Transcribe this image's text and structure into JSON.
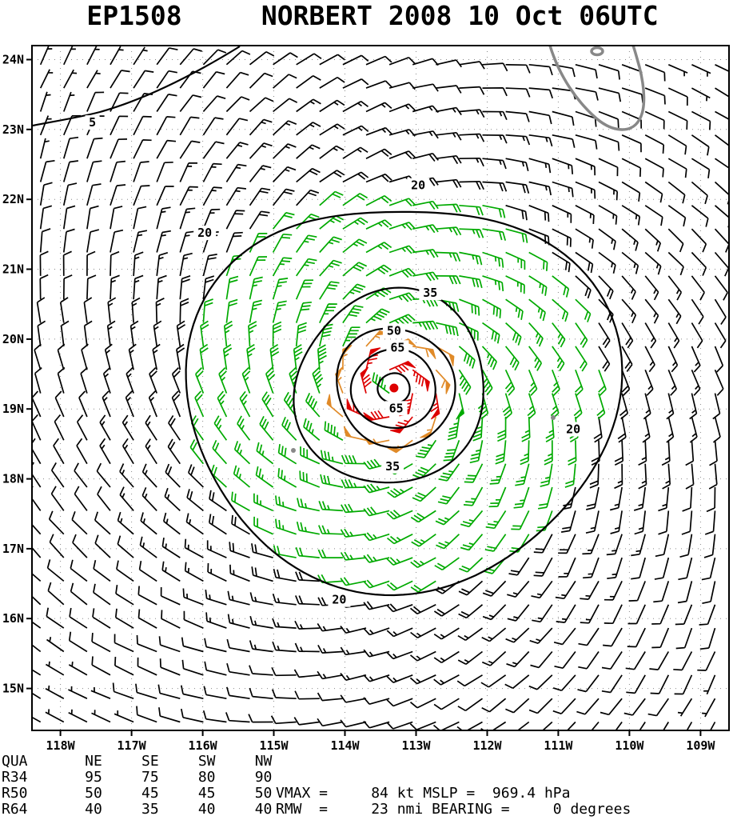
{
  "title": "EP1508     NORBERT 2008 10 Oct 06UTC",
  "chart_data": {
    "type": "wind-barb-analysis-map",
    "storm_id": "EP1508",
    "storm_name": "NORBERT",
    "valid_time": "2008 10 Oct 06UTC",
    "center": {
      "lon_w": 113.31,
      "lat_n": 19.3
    },
    "vmax_kt": 84,
    "mslp_hpa": 969.4,
    "rmw_nmi": 23,
    "bearing_deg": 0,
    "axes": {
      "lon_w_ticks": [
        118,
        117,
        116,
        115,
        114,
        113,
        112,
        111,
        110,
        109
      ],
      "lon_tick_labels": [
        "118W",
        "117W",
        "116W",
        "115W",
        "114W",
        "113W",
        "112W",
        "111W",
        "110W",
        "109W"
      ],
      "lat_n_ticks": [
        15,
        16,
        17,
        18,
        19,
        20,
        21,
        22,
        23,
        24
      ],
      "lat_tick_labels": [
        "15N",
        "16N",
        "17N",
        "18N",
        "19N",
        "20N",
        "21N",
        "22N",
        "23N",
        "24N"
      ],
      "lon_w_range": [
        118.4,
        108.6
      ],
      "lat_n_range": [
        14.4,
        24.2
      ],
      "grid": "dotted"
    },
    "wind_profile_r_deg_to_kt": [
      [
        0,
        8
      ],
      [
        0.15,
        62
      ],
      [
        0.25,
        80
      ],
      [
        0.38,
        84
      ],
      [
        0.58,
        65
      ],
      [
        0.84,
        50
      ],
      [
        1.36,
        34
      ],
      [
        2.0,
        26
      ],
      [
        2.9,
        20
      ],
      [
        4.5,
        11
      ],
      [
        6.5,
        6
      ],
      [
        12,
        4
      ]
    ],
    "inflow_angle_rad": 0.3,
    "barb_spacing_deg": {
      "lon": 0.327,
      "lat": 0.336
    },
    "barb_colors": {
      "black_lt20": "#000000",
      "green_20_47": "#00aa00",
      "orange_48_63": "#e08a28",
      "red_ge64": "#dd0000"
    },
    "isotachs": [
      {
        "value": 5,
        "rings_deg": [],
        "wiggle": 0.0,
        "labels": [
          {
            "lon_w": 117.55,
            "lat_n": 23.1
          }
        ]
      },
      {
        "value": 20,
        "rings_deg": [
          2.9
        ],
        "wiggle": 0.055,
        "labels": [
          {
            "lon_w": 115.97,
            "lat_n": 21.52
          },
          {
            "lon_w": 112.97,
            "lat_n": 22.2
          },
          {
            "lon_w": 110.79,
            "lat_n": 18.71
          },
          {
            "lon_w": 114.08,
            "lat_n": 16.27
          }
        ]
      },
      {
        "value": 35,
        "rings_deg": [
          1.36
        ],
        "wiggle": 0.04,
        "labels": [
          {
            "lon_w": 112.8,
            "lat_n": 20.66
          },
          {
            "lon_w": 113.33,
            "lat_n": 18.18
          }
        ]
      },
      {
        "value": 50,
        "rings_deg": [
          0.84
        ],
        "wiggle": 0.03,
        "labels": [
          {
            "lon_w": 113.31,
            "lat_n": 20.12
          }
        ]
      },
      {
        "value": 65,
        "rings_deg": [
          0.58,
          0.22
        ],
        "wiggle": 0.025,
        "labels": [
          {
            "lon_w": 113.26,
            "lat_n": 19.88
          },
          {
            "lon_w": 113.28,
            "lat_n": 19.01
          }
        ]
      }
    ],
    "geography": {
      "coastline_color": "#888888",
      "features": [
        "baja-california-tip",
        "offshore-islands"
      ]
    }
  },
  "table": {
    "corner": "QUA",
    "quadrants": [
      "NE",
      "SE",
      "SW",
      "NW"
    ],
    "rows": [
      {
        "label": "R34",
        "values": [
          "95",
          "75",
          "80",
          "90"
        ]
      },
      {
        "label": "R50",
        "values": [
          "50",
          "45",
          "45",
          "50"
        ]
      },
      {
        "label": "R64",
        "values": [
          "40",
          "35",
          "40",
          "40"
        ]
      }
    ],
    "stats_lines": [
      "VMAX =     84 kt MSLP =  969.4 hPa",
      "RMW  =     23 nmi BEARING =     0 degrees"
    ]
  }
}
